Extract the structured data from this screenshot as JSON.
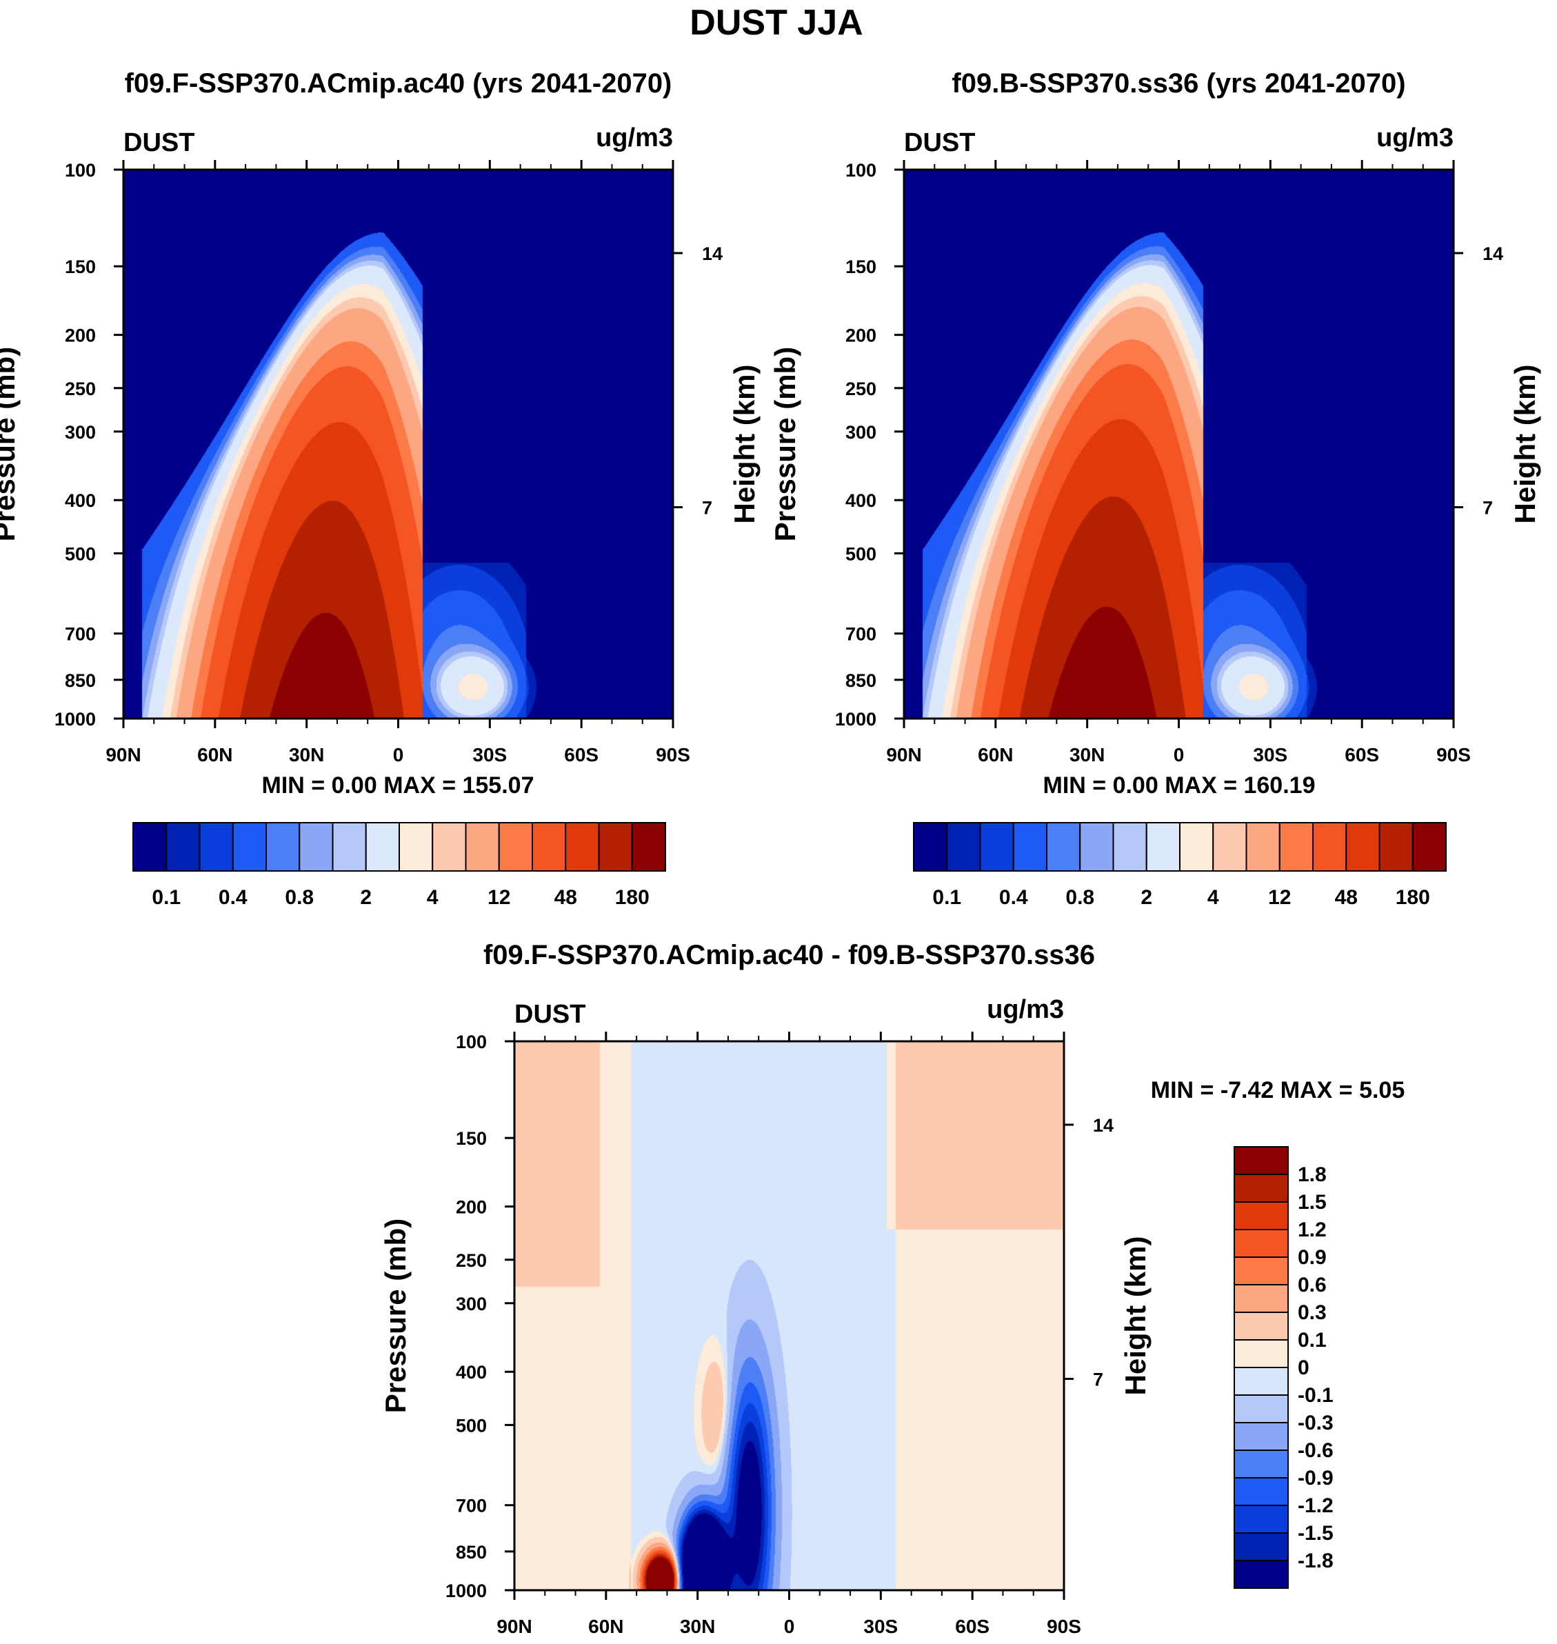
{
  "title": "DUST JJA",
  "colors": {
    "seq": [
      "#00008b",
      "#0022b4",
      "#0a3fdc",
      "#1e5af5",
      "#4c7ef5",
      "#8aa7f5",
      "#b4c9fa",
      "#dce8fb",
      "#fdebd9",
      "#fdcab0",
      "#fca782",
      "#fb7a48",
      "#f55423",
      "#e03a0b",
      "#b32100",
      "#8b0000"
    ],
    "div": [
      "#00008b",
      "#0022b4",
      "#0a3fdc",
      "#1e5af5",
      "#4c7ef5",
      "#8aa7f5",
      "#b4c9fa",
      "#d6e6fb",
      "#fdebd9",
      "#fdcab0",
      "#fca782",
      "#fb7a48",
      "#f55423",
      "#e03a0b",
      "#b32100",
      "#8b0000"
    ]
  },
  "chart_data": [
    {
      "type": "heatmap",
      "panel": "A",
      "title": "f09.F-SSP370.ACmip.ac40 (yrs 2041-2070)",
      "left_label": "DUST",
      "units": "ug/m3",
      "ylabel": "Pressure (mb)",
      "ylabel_right": "Height (km)",
      "x_ticks": [
        "90N",
        "60N",
        "30N",
        "0",
        "30S",
        "60S",
        "90S"
      ],
      "x_range": [
        90,
        -90
      ],
      "y_ticks": [
        100,
        150,
        200,
        250,
        300,
        400,
        500,
        700,
        850,
        1000
      ],
      "y_range": [
        100,
        1000
      ],
      "height_ticks": [
        14,
        7
      ],
      "min_max_text": "MIN =   0.00  MAX = 155.07",
      "min": 0.0,
      "max": 155.07,
      "colorbar_labels": [
        "0.1",
        "0.4",
        "0.8",
        "2",
        "4",
        "12",
        "48",
        "180"
      ],
      "field": {
        "lat_peak": 25,
        "lat_width": 26,
        "dust_top_mb": 130,
        "peak_value": 155.07,
        "secondary_lat": -25,
        "secondary_value": 2
      }
    },
    {
      "type": "heatmap",
      "panel": "B",
      "title": "f09.B-SSP370.ss36 (yrs 2041-2070)",
      "left_label": "DUST",
      "units": "ug/m3",
      "ylabel": "Pressure (mb)",
      "ylabel_right": "Height (km)",
      "x_ticks": [
        "90N",
        "60N",
        "30N",
        "0",
        "30S",
        "60S",
        "90S"
      ],
      "x_range": [
        90,
        -90
      ],
      "y_ticks": [
        100,
        150,
        200,
        250,
        300,
        400,
        500,
        700,
        850,
        1000
      ],
      "y_range": [
        100,
        1000
      ],
      "height_ticks": [
        14,
        7
      ],
      "min_max_text": "MIN =   0.00  MAX = 160.19",
      "min": 0.0,
      "max": 160.19,
      "colorbar_labels": [
        "0.1",
        "0.4",
        "0.8",
        "2",
        "4",
        "12",
        "48",
        "180"
      ],
      "field": {
        "lat_peak": 25,
        "lat_width": 26,
        "dust_top_mb": 130,
        "peak_value": 160.19,
        "secondary_lat": -25,
        "secondary_value": 2
      }
    },
    {
      "type": "heatmap",
      "panel": "diff",
      "title": "f09.F-SSP370.ACmip.ac40 - f09.B-SSP370.ss36",
      "left_label": "DUST",
      "units": "ug/m3",
      "ylabel": "Pressure (mb)",
      "ylabel_right": "Height (km)",
      "x_ticks": [
        "90N",
        "60N",
        "30N",
        "0",
        "30S",
        "60S",
        "90S"
      ],
      "x_range": [
        90,
        -90
      ],
      "y_ticks": [
        100,
        150,
        200,
        250,
        300,
        400,
        500,
        700,
        850,
        1000
      ],
      "y_range": [
        100,
        1000
      ],
      "height_ticks": [
        14,
        7
      ],
      "min_max_text": "MIN =  -7.42  MAX =   5.05",
      "min": -7.42,
      "max": 5.05,
      "colorbar_labels": [
        "1.8",
        "1.5",
        "1.2",
        "0.9",
        "0.6",
        "0.3",
        "0.1",
        "0",
        "-0.1",
        "-0.3",
        "-0.6",
        "-0.9",
        "-1.2",
        "-1.5",
        "-1.8"
      ],
      "field": {
        "positive_max_lat": 42,
        "negative_min_lat": 28,
        "negative_lat_2": 13
      }
    }
  ]
}
